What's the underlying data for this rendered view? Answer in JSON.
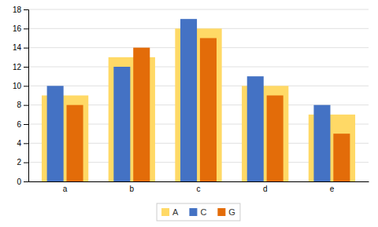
{
  "chart_data": {
    "type": "bar",
    "categories": [
      "a",
      "b",
      "c",
      "d",
      "e"
    ],
    "series": [
      {
        "name": "A",
        "color": "#FFD966",
        "values": [
          9,
          13,
          16,
          10,
          7
        ]
      },
      {
        "name": "C",
        "color": "#4472C4",
        "values": [
          10,
          12,
          17,
          11,
          8
        ]
      },
      {
        "name": "G",
        "color": "#E36C09",
        "values": [
          8,
          14,
          15,
          9,
          5
        ]
      }
    ],
    "ylim": [
      0,
      18
    ],
    "yticks": [
      0,
      2,
      4,
      6,
      8,
      10,
      12,
      14,
      16,
      18
    ],
    "grid": true,
    "legend": "bottom"
  }
}
